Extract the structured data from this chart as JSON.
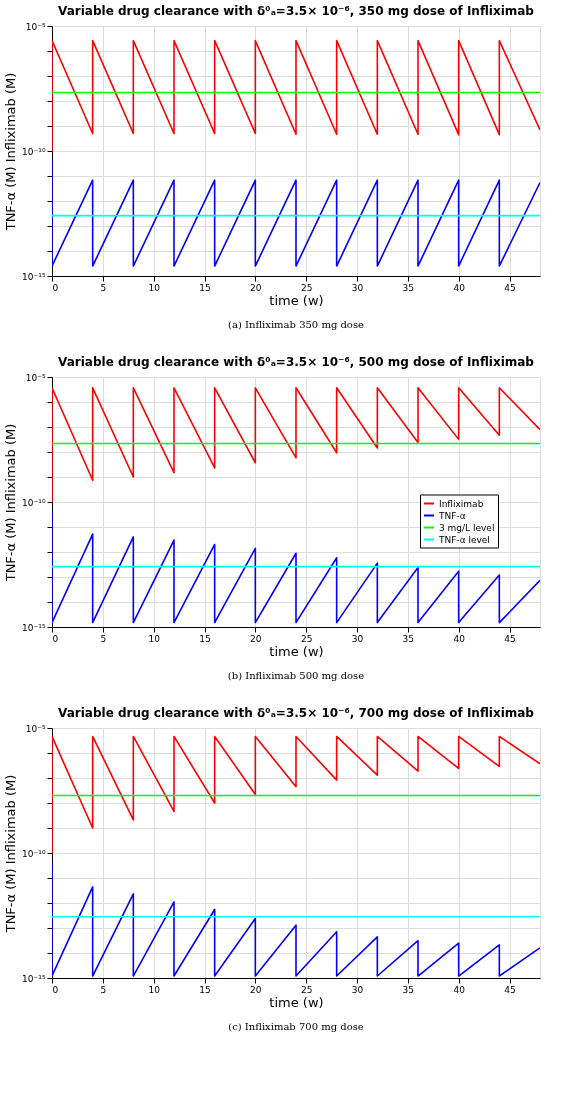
{
  "chart_data": [
    {
      "type": "line",
      "title": "Variable drug clearance with δ⁰ₐ=3.5× 10⁻⁶,  350 mg dose of Infliximab",
      "xlabel": "time (w)",
      "ylabel": "TNF-α (M)   Infliximab (M)",
      "annotations": [
        "(a) Infliximab 350 mg dose"
      ],
      "xlim": [
        0,
        48
      ],
      "xticks": [
        0,
        5,
        10,
        15,
        20,
        25,
        30,
        35,
        40,
        45
      ],
      "ylim": [
        1e-15,
        1e-05
      ],
      "yticks": [
        {
          "value": 1e-15,
          "label": "10⁻¹⁵"
        },
        {
          "value": 1e-14,
          "label": null
        },
        {
          "value": 1e-13,
          "label": null
        },
        {
          "value": 1e-12,
          "label": null
        },
        {
          "value": 1e-11,
          "label": null
        },
        {
          "value": 1e-10,
          "label": "10⁻¹⁰"
        },
        {
          "value": 1e-09,
          "label": null
        },
        {
          "value": 1e-08,
          "label": null
        },
        {
          "value": 1e-07,
          "label": null
        },
        {
          "value": 1e-06,
          "label": null
        },
        {
          "value": 1e-05,
          "label": "10⁻⁵"
        }
      ],
      "log": "y",
      "grid": true,
      "line_style": "solid",
      "marker": "none",
      "series": [
        {
          "color": "#ff0000",
          "x": [
            0,
            0,
            4,
            4,
            8,
            8,
            12,
            12,
            16,
            16,
            20,
            20,
            24,
            24,
            28,
            28,
            32,
            32,
            36,
            36,
            40,
            40,
            44,
            44,
            48
          ],
          "values": [
            1e-10,
            2.6e-06,
            5e-10,
            2.6e-06,
            5e-10,
            2.6e-06,
            5e-10,
            2.6e-06,
            5e-10,
            2.6e-06,
            5e-10,
            2.6e-06,
            4.7e-10,
            2.6e-06,
            4.7e-10,
            2.6e-06,
            4.7e-10,
            2.6e-06,
            4.7e-10,
            2.6e-06,
            4.5e-10,
            2.6e-06,
            4.5e-10,
            2.6e-06,
            7e-10
          ]
        },
        {
          "color": "#0000ff",
          "x": [
            0,
            0,
            4,
            4,
            8,
            8,
            12,
            12,
            16,
            16,
            20,
            20,
            24,
            24,
            28,
            28,
            32,
            32,
            36,
            36,
            40,
            40,
            44,
            44,
            48
          ],
          "values": [
            4.5e-11,
            2.5e-15,
            6.8e-12,
            2.5e-15,
            6.8e-12,
            2.5e-15,
            6.8e-12,
            2.5e-15,
            6.8e-12,
            2.5e-15,
            6.8e-12,
            2.5e-15,
            6.8e-12,
            2.5e-15,
            6.8e-12,
            2.5e-15,
            6.8e-12,
            2.5e-15,
            6.8e-12,
            2.5e-15,
            6.8e-12,
            2.5e-15,
            6.8e-12,
            2.5e-15,
            5.5e-12
          ]
        },
        {
          "color": "#00ff00",
          "x": [
            0,
            48
          ],
          "values": [
            2.2e-08,
            2.2e-08
          ]
        },
        {
          "color": "#00ffff",
          "x": [
            0,
            48
          ],
          "values": [
            2.6e-13,
            2.6e-13
          ]
        }
      ]
    },
    {
      "type": "line",
      "title": "Variable drug clearance with δ⁰ₐ=3.5× 10⁻⁶,  500 mg dose of Infliximab",
      "xlabel": "time (w)",
      "ylabel": "TNF-α (M)   Infliximab (M)",
      "annotations": [
        "(b) Infliximab 500 mg dose"
      ],
      "xlim": [
        0,
        48
      ],
      "xticks": [
        0,
        5,
        10,
        15,
        20,
        25,
        30,
        35,
        40,
        45
      ],
      "ylim": [
        1e-15,
        1e-05
      ],
      "yticks": [
        {
          "value": 1e-15,
          "label": "10⁻¹⁵"
        },
        {
          "value": 1e-14,
          "label": null
        },
        {
          "value": 1e-13,
          "label": null
        },
        {
          "value": 1e-12,
          "label": null
        },
        {
          "value": 1e-11,
          "label": null
        },
        {
          "value": 1e-10,
          "label": "10⁻¹⁰"
        },
        {
          "value": 1e-09,
          "label": null
        },
        {
          "value": 1e-08,
          "label": null
        },
        {
          "value": 1e-07,
          "label": null
        },
        {
          "value": 1e-06,
          "label": null
        },
        {
          "value": 1e-05,
          "label": "10⁻⁵"
        }
      ],
      "log": "y",
      "grid": true,
      "legend": "right",
      "line_style": "solid",
      "marker": "none",
      "series": [
        {
          "name": "Infliximab",
          "color": "#ff0000",
          "x": [
            0,
            0,
            4,
            4,
            8,
            8,
            12,
            12,
            16,
            16,
            20,
            20,
            24,
            24,
            28,
            28,
            32,
            32,
            36,
            36,
            40,
            40,
            44,
            44,
            48
          ],
          "values": [
            1e-10,
            3.7e-06,
            7.4e-10,
            3.7e-06,
            1e-09,
            3.7e-06,
            1.5e-09,
            3.7e-06,
            2.3e-09,
            3.7e-06,
            3.7e-09,
            3.7e-06,
            5.8e-09,
            3.7e-06,
            9.3e-09,
            3.7e-06,
            1.45e-08,
            3.7e-06,
            2.4e-08,
            3.7e-06,
            3.2e-08,
            3.7e-06,
            4.7e-08,
            3.7e-06,
            7.8e-08
          ]
        },
        {
          "name": "TNF-α",
          "color": "#0000ff",
          "x": [
            0,
            0,
            4,
            4,
            8,
            8,
            12,
            12,
            16,
            16,
            20,
            20,
            24,
            24,
            28,
            28,
            32,
            32,
            36,
            36,
            40,
            40,
            44,
            44,
            48
          ],
          "values": [
            4.1e-11,
            1.5e-15,
            5.2e-12,
            1.5e-15,
            4e-12,
            1.5e-15,
            3e-12,
            1.5e-15,
            2e-12,
            1.5e-15,
            1.4e-12,
            1.5e-15,
            8.9e-13,
            1.5e-15,
            5.9e-13,
            1.5e-15,
            3.6e-13,
            1.5e-15,
            2.4e-13,
            1.5e-15,
            1.7e-13,
            1.5e-15,
            1.2e-13,
            1.5e-15,
            7.3e-14
          ]
        },
        {
          "name": "3 mg/L level",
          "color": "#00ff00",
          "x": [
            0,
            48
          ],
          "values": [
            2.2e-08,
            2.2e-08
          ]
        },
        {
          "name": "TNF-α level",
          "color": "#00ffff",
          "x": [
            0,
            48
          ],
          "values": [
            2.6e-13,
            2.6e-13
          ]
        }
      ]
    },
    {
      "type": "line",
      "title": "Variable drug clearance with δ⁰ₐ=3.5× 10⁻⁶,  700 mg dose of Infliximab",
      "xlabel": "time (w)",
      "ylabel": "TNF-α (M)   Infliximab (M)",
      "annotations": [
        "(c) Infliximab 700 mg dose"
      ],
      "xlim": [
        0,
        48
      ],
      "xticks": [
        0,
        5,
        10,
        15,
        20,
        25,
        30,
        35,
        40,
        45
      ],
      "ylim": [
        1e-15,
        1e-05
      ],
      "yticks": [
        {
          "value": 1e-15,
          "label": "10⁻¹⁵"
        },
        {
          "value": 1e-14,
          "label": null
        },
        {
          "value": 1e-13,
          "label": null
        },
        {
          "value": 1e-12,
          "label": null
        },
        {
          "value": 1e-11,
          "label": null
        },
        {
          "value": 1e-10,
          "label": "10⁻¹⁰"
        },
        {
          "value": 1e-09,
          "label": null
        },
        {
          "value": 1e-08,
          "label": null
        },
        {
          "value": 1e-07,
          "label": null
        },
        {
          "value": 1e-06,
          "label": null
        },
        {
          "value": 1e-05,
          "label": "10⁻⁵"
        }
      ],
      "log": "y",
      "grid": true,
      "line_style": "solid",
      "marker": "none",
      "series": [
        {
          "color": "#ff0000",
          "x": [
            0,
            0,
            4,
            4,
            8,
            8,
            12,
            12,
            16,
            16,
            20,
            20,
            24,
            24,
            28,
            28,
            32,
            32,
            36,
            36,
            40,
            40,
            44,
            44,
            48
          ],
          "values": [
            1e-10,
            4.6e-06,
            1e-09,
            4.6e-06,
            2.1e-09,
            4.6e-06,
            4.6e-09,
            4.6e-06,
            1e-08,
            4.6e-06,
            2.2e-08,
            4.6e-06,
            4.5e-08,
            4.6e-06,
            8.2e-08,
            4.6e-06,
            1.3e-07,
            4.6e-06,
            1.9e-07,
            4.6e-06,
            2.4e-07,
            4.6e-06,
            2.9e-07,
            4.6e-06,
            3.7e-07
          ]
        },
        {
          "color": "#0000ff",
          "x": [
            0,
            0,
            4,
            4,
            8,
            8,
            12,
            12,
            16,
            16,
            20,
            20,
            24,
            24,
            28,
            28,
            32,
            32,
            36,
            36,
            40,
            40,
            44,
            44,
            48
          ],
          "values": [
            4.3e-11,
            1.2e-15,
            4.4e-12,
            1.2e-15,
            2.3e-12,
            1.2e-15,
            1.1e-12,
            1.2e-15,
            5.5e-13,
            1.2e-15,
            2.4e-13,
            1.2e-15,
            1.3e-13,
            1.2e-15,
            7.1e-14,
            1.2e-15,
            4.4e-14,
            1.2e-15,
            3.1e-14,
            1.2e-15,
            2.5e-14,
            1.2e-15,
            2.1e-14,
            1.2e-15,
            1.6e-14
          ]
        },
        {
          "color": "#00ff00",
          "x": [
            0,
            48
          ],
          "values": [
            2e-08,
            2e-08
          ]
        },
        {
          "color": "#00ffff",
          "x": [
            0,
            48
          ],
          "values": [
            2.8e-13,
            2.8e-13
          ]
        }
      ]
    }
  ]
}
